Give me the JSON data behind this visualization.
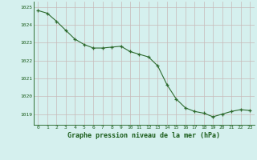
{
  "x": [
    0,
    1,
    2,
    3,
    4,
    5,
    6,
    7,
    8,
    9,
    10,
    11,
    12,
    13,
    14,
    15,
    16,
    17,
    18,
    19,
    20,
    21,
    22,
    23
  ],
  "y": [
    1024.8,
    1024.65,
    1024.2,
    1023.7,
    1023.2,
    1022.9,
    1022.7,
    1022.7,
    1022.75,
    1022.8,
    1022.5,
    1022.35,
    1022.2,
    1021.7,
    1020.65,
    1019.85,
    1019.35,
    1019.15,
    1019.05,
    1018.85,
    1019.0,
    1019.15,
    1019.25,
    1019.2
  ],
  "line_color": "#2d6a2d",
  "marker_color": "#2d6a2d",
  "bg_color": "#d5f0ee",
  "grid_color_v": "#c8b8b8",
  "grid_color_h": "#c8b8b8",
  "xlabel": "Graphe pression niveau de la mer (hPa)",
  "xlabel_color": "#1a5c1a",
  "tick_color": "#1a5c1a",
  "ylim": [
    1018.4,
    1025.3
  ],
  "yticks": [
    1019,
    1020,
    1021,
    1022,
    1023,
    1024,
    1025
  ],
  "xlim": [
    -0.5,
    23.5
  ],
  "xticks": [
    0,
    1,
    2,
    3,
    4,
    5,
    6,
    7,
    8,
    9,
    10,
    11,
    12,
    13,
    14,
    15,
    16,
    17,
    18,
    19,
    20,
    21,
    22,
    23
  ]
}
